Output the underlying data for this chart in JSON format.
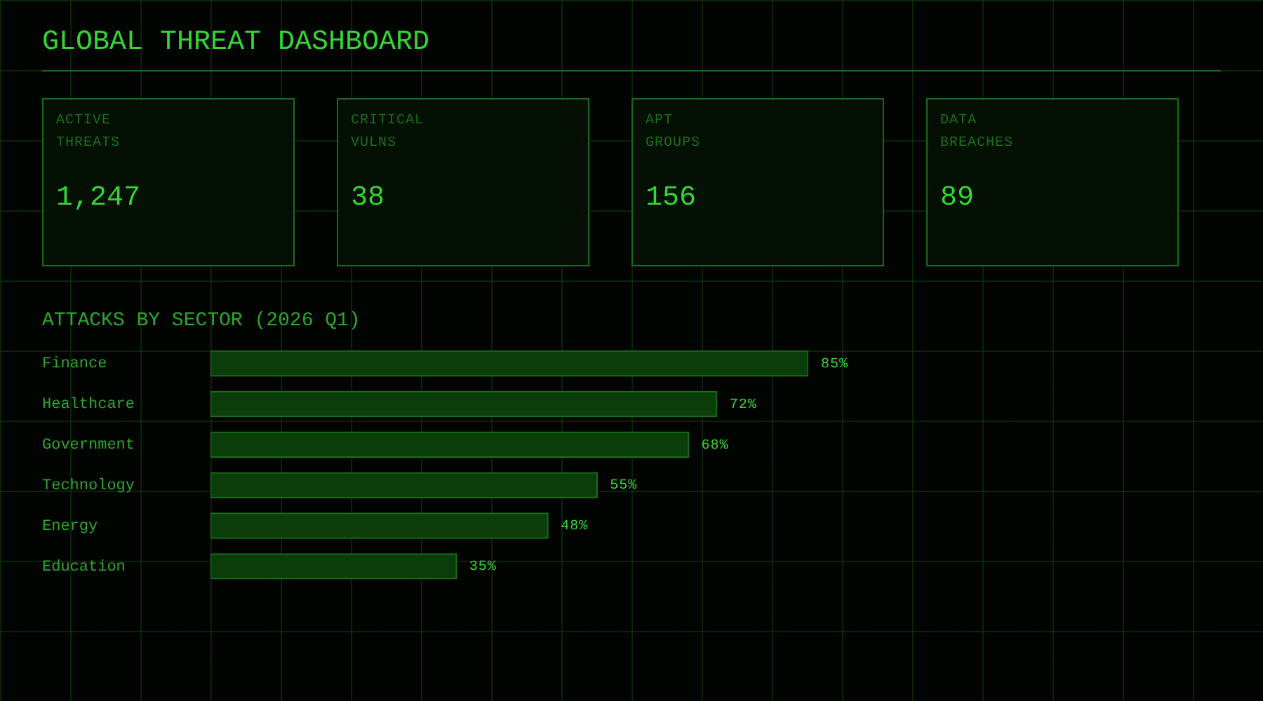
{
  "chart_data": [
    {
      "type": "other",
      "title": "GLOBAL THREAT DASHBOARD",
      "categories": [
        "ACTIVE THREATS",
        "CRITICAL VULNS",
        "APT GROUPS",
        "DATA BREACHES"
      ],
      "values": [
        1247,
        38,
        156,
        89
      ],
      "value_labels": [
        "1,247",
        "38",
        "156",
        "89"
      ]
    },
    {
      "type": "bar",
      "orientation": "horizontal",
      "title": "ATTACKS BY SECTOR (2026 Q1)",
      "categories": [
        "Finance",
        "Healthcare",
        "Government",
        "Technology",
        "Energy",
        "Education"
      ],
      "values": [
        85,
        72,
        68,
        55,
        48,
        35
      ],
      "value_labels": [
        "85%",
        "72%",
        "68%",
        "55%",
        "48%",
        "35%"
      ],
      "color": "#0a3d0a",
      "tick_labels": "y"
    }
  ]
}
